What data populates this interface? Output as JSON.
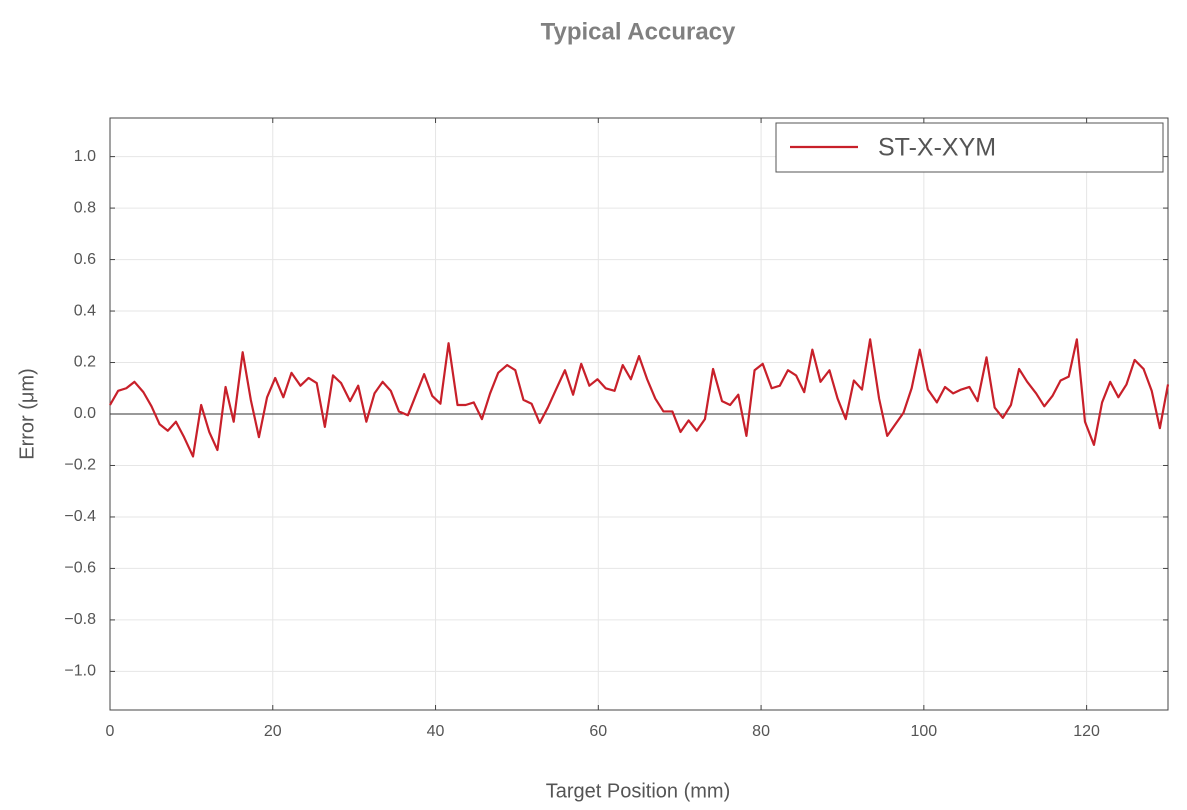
{
  "chart_data": {
    "type": "line",
    "title": "Typical Accuracy",
    "xlabel": "Target Position (mm)",
    "ylabel": "Error (μm)",
    "x": [
      0,
      1,
      2,
      3,
      4.1,
      5.1,
      6.1,
      7.1,
      8.1,
      9.1,
      10.2,
      11.2,
      12.2,
      13.2,
      14.2,
      15.2,
      16.3,
      17.3,
      18.3,
      19.3,
      20.3,
      21.3,
      22.3,
      23.4,
      24.4,
      25.4,
      26.4,
      27.4,
      28.4,
      29.5,
      30.5,
      31.5,
      32.5,
      33.5,
      34.5,
      35.5,
      36.6,
      37.6,
      38.6,
      39.6,
      40.6,
      41.6,
      42.7,
      43.7,
      44.7,
      45.7,
      46.7,
      47.7,
      48.8,
      49.8,
      50.8,
      51.8,
      52.8,
      53.8,
      54.8,
      55.9,
      56.9,
      57.9,
      58.9,
      59.9,
      60.9,
      62,
      63,
      64,
      65,
      66,
      67,
      68,
      69.1,
      70.1,
      71.1,
      72.1,
      73.1,
      74.1,
      75.2,
      76.2,
      77.2,
      78.2,
      79.2,
      80.2,
      81.3,
      82.3,
      83.3,
      84.3,
      85.3,
      86.3,
      87.3,
      88.4,
      89.4,
      90.4,
      91.4,
      92.4,
      93.4,
      94.5,
      95.5,
      96.5,
      97.5,
      98.5,
      99.5,
      100.5,
      101.6,
      102.6,
      103.6,
      104.6,
      105.6,
      106.6,
      107.7,
      108.7,
      109.7,
      110.7,
      111.7,
      112.7,
      113.8,
      114.8,
      115.8,
      116.8,
      117.8,
      118.8,
      119.8,
      120.9,
      121.9,
      122.9,
      123.9,
      124.9,
      125.9,
      127,
      128,
      129,
      130
    ],
    "series": [
      {
        "name": "ST-X-XYM",
        "color": "#c8202a",
        "values": [
          0.035,
          0.09,
          0.1,
          0.125,
          0.085,
          0.03,
          -0.04,
          -0.065,
          -0.03,
          -0.09,
          -0.165,
          0.035,
          -0.07,
          -0.14,
          0.105,
          -0.03,
          0.24,
          0.055,
          -0.09,
          0.065,
          0.14,
          0.065,
          0.16,
          0.11,
          0.14,
          0.12,
          -0.05,
          0.15,
          0.12,
          0.05,
          0.11,
          -0.03,
          0.08,
          0.125,
          0.09,
          0.01,
          -0.005,
          0.075,
          0.155,
          0.07,
          0.04,
          0.275,
          0.035,
          0.035,
          0.045,
          -0.02,
          0.08,
          0.16,
          0.19,
          0.17,
          0.055,
          0.04,
          -0.035,
          0.025,
          0.095,
          0.17,
          0.075,
          0.195,
          0.11,
          0.135,
          0.1,
          0.09,
          0.19,
          0.135,
          0.225,
          0.135,
          0.06,
          0.01,
          0.01,
          -0.07,
          -0.025,
          -0.065,
          -0.02,
          0.175,
          0.05,
          0.035,
          0.075,
          -0.085,
          0.17,
          0.195,
          0.1,
          0.11,
          0.17,
          0.15,
          0.085,
          0.25,
          0.125,
          0.17,
          0.06,
          -0.02,
          0.13,
          0.095,
          0.29,
          0.06,
          -0.085,
          -0.04,
          0.005,
          0.1,
          0.25,
          0.095,
          0.045,
          0.105,
          0.08,
          0.095,
          0.105,
          0.05,
          0.22,
          0.025,
          -0.015,
          0.035,
          0.175,
          0.125,
          0.08,
          0.03,
          0.07,
          0.13,
          0.145,
          0.29,
          -0.03,
          -0.12,
          0.045,
          0.125,
          0.065,
          0.115,
          0.21,
          0.175,
          0.09,
          -0.055,
          0.115
        ]
      }
    ],
    "xlim": [
      0,
      130
    ],
    "xticks": [
      0,
      20,
      40,
      60,
      80,
      100,
      120
    ],
    "ylim": [
      -1.15,
      1.15
    ],
    "yticks": [
      {
        "value": -1.0,
        "label": "−1.0"
      },
      {
        "value": -0.8,
        "label": "−0.8"
      },
      {
        "value": -0.6,
        "label": "−0.6"
      },
      {
        "value": -0.4,
        "label": "−0.4"
      },
      {
        "value": -0.2,
        "label": "−0.2"
      },
      {
        "value": 0.0,
        "label": "0.0"
      },
      {
        "value": 0.2,
        "label": "0.2"
      },
      {
        "value": 0.4,
        "label": "0.4"
      },
      {
        "value": 0.6,
        "label": "0.6"
      },
      {
        "value": 0.8,
        "label": "0.8"
      },
      {
        "value": 1.0,
        "label": "1.0"
      }
    ],
    "grid": true,
    "legend": "upper right"
  }
}
